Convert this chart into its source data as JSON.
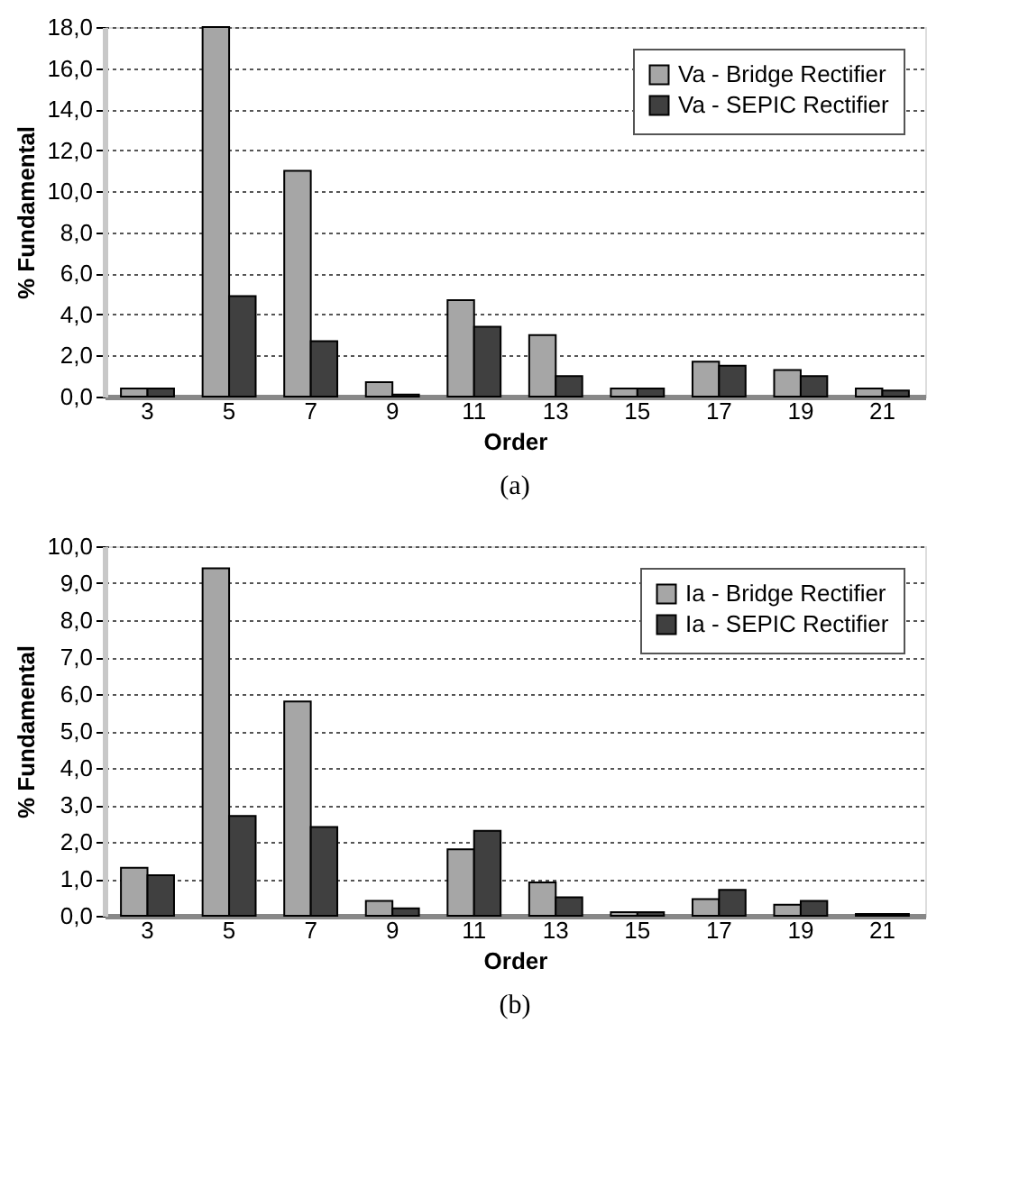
{
  "chart_data": [
    {
      "type": "bar",
      "title": "(a)",
      "xlabel": "Order",
      "ylabel": "% Fundamental",
      "categories": [
        "3",
        "5",
        "7",
        "9",
        "11",
        "13",
        "15",
        "17",
        "19",
        "21"
      ],
      "series": [
        {
          "name": "Va - Bridge Rectifier",
          "color": "#a6a6a6",
          "values": [
            0.4,
            18.0,
            11.0,
            0.7,
            4.7,
            3.0,
            0.4,
            1.7,
            1.3,
            0.4
          ]
        },
        {
          "name": "Va - SEPIC Rectifier",
          "color": "#404040",
          "values": [
            0.4,
            4.9,
            2.7,
            0.1,
            3.4,
            1.0,
            0.4,
            1.5,
            1.0,
            0.3
          ]
        }
      ],
      "ylim": [
        0,
        18
      ],
      "yticks": [
        {
          "value": 0,
          "label": "0,0"
        },
        {
          "value": 2,
          "label": "2,0"
        },
        {
          "value": 4,
          "label": "4,0"
        },
        {
          "value": 6,
          "label": "6,0"
        },
        {
          "value": 8,
          "label": "8,0"
        },
        {
          "value": 10,
          "label": "10,0"
        },
        {
          "value": 12,
          "label": "12,0"
        },
        {
          "value": 14,
          "label": "14,0"
        },
        {
          "value": 16,
          "label": "16,0"
        },
        {
          "value": 18,
          "label": "18,0"
        }
      ],
      "grid": "y",
      "legend": "top right"
    },
    {
      "type": "bar",
      "title": "(b)",
      "xlabel": "Order",
      "ylabel": "% Fundamental",
      "categories": [
        "3",
        "5",
        "7",
        "9",
        "11",
        "13",
        "15",
        "17",
        "19",
        "21"
      ],
      "series": [
        {
          "name": "Ia - Bridge Rectifier",
          "color": "#a6a6a6",
          "values": [
            1.3,
            9.4,
            5.8,
            0.4,
            1.8,
            0.9,
            0.1,
            0.45,
            0.3,
            0.05
          ]
        },
        {
          "name": "Ia - SEPIC Rectifier",
          "color": "#404040",
          "values": [
            1.1,
            2.7,
            2.4,
            0.2,
            2.3,
            0.5,
            0.1,
            0.7,
            0.4,
            0.05
          ]
        }
      ],
      "ylim": [
        0,
        10
      ],
      "yticks": [
        {
          "value": 0,
          "label": "0,0"
        },
        {
          "value": 1,
          "label": "1,0"
        },
        {
          "value": 2,
          "label": "2,0"
        },
        {
          "value": 3,
          "label": "3,0"
        },
        {
          "value": 4,
          "label": "4,0"
        },
        {
          "value": 5,
          "label": "5,0"
        },
        {
          "value": 6,
          "label": "6,0"
        },
        {
          "value": 7,
          "label": "7,0"
        },
        {
          "value": 8,
          "label": "8,0"
        },
        {
          "value": 9,
          "label": "9,0"
        },
        {
          "value": 10,
          "label": "10,0"
        }
      ],
      "grid": "y",
      "legend": "top right"
    }
  ]
}
